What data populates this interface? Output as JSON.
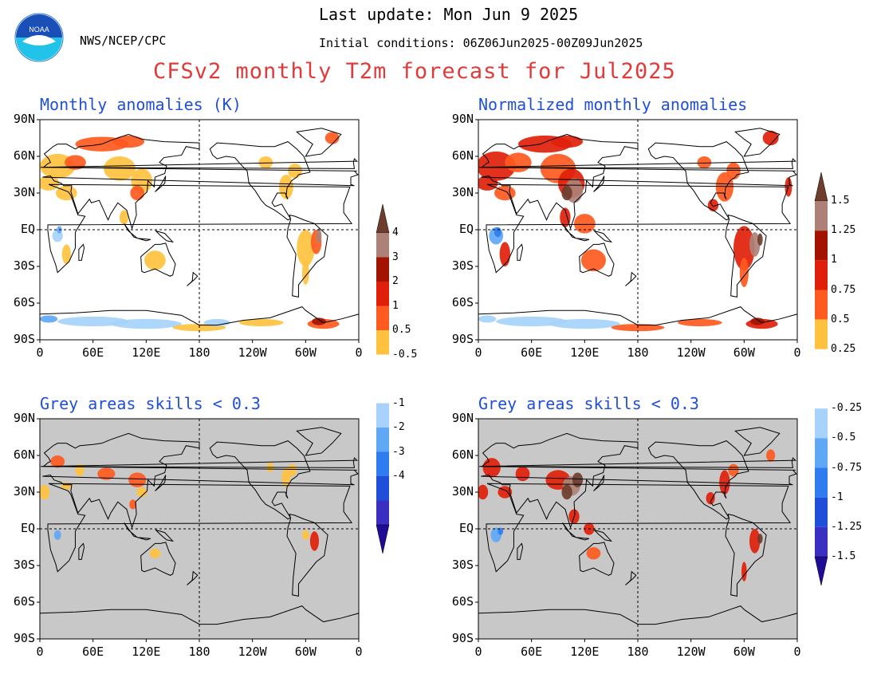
{
  "header": {
    "agency": "NWS/NCEP/CPC",
    "last_update": "Last update: Mon Jun 9 2025",
    "initial_conditions": "Initial conditions: 06Z06Jun2025-00Z09Jun2025",
    "title": "CFSv2 monthly T2m forecast for Jul2025",
    "logo_text": "NOAA"
  },
  "panels": [
    {
      "title": "Monthly anomalies (K)"
    },
    {
      "title": "Normalized monthly anomalies"
    },
    {
      "title": "Grey areas skills < 0.3"
    },
    {
      "title": "Grey areas skills < 0.3"
    }
  ],
  "axes": {
    "lat_labels": [
      "90N",
      "60N",
      "30N",
      "EQ",
      "30S",
      "60S",
      "90S"
    ],
    "lon_labels": [
      "0",
      "60E",
      "120E",
      "180",
      "120W",
      "60W",
      "0"
    ]
  },
  "colorbar_left": {
    "labels": [
      "4",
      "3",
      "2",
      "1",
      "0.5",
      "-0.5",
      "-1",
      "-2",
      "-3",
      "-4"
    ]
  },
  "colorbar_right": {
    "labels": [
      "1.5",
      "1.25",
      "1",
      "0.75",
      "0.5",
      "0.25",
      "-0.25",
      "-0.5",
      "-0.75",
      "-1",
      "-1.25",
      "-1.5"
    ]
  },
  "colors": {
    "warm": [
      "#ffc23f",
      "#ff5a1f",
      "#e01f0a",
      "#a31400",
      "#ad8177",
      "#6e3d2c"
    ],
    "cool": [
      "#a6d2fb",
      "#5fa8f5",
      "#2f7cf0",
      "#1f4fd8",
      "#3b2fc2",
      "#1e0c96"
    ],
    "skill_mask": "#c8c8c8",
    "title_red": "#e03a3a",
    "title_blue": "#1f4fd8"
  }
}
